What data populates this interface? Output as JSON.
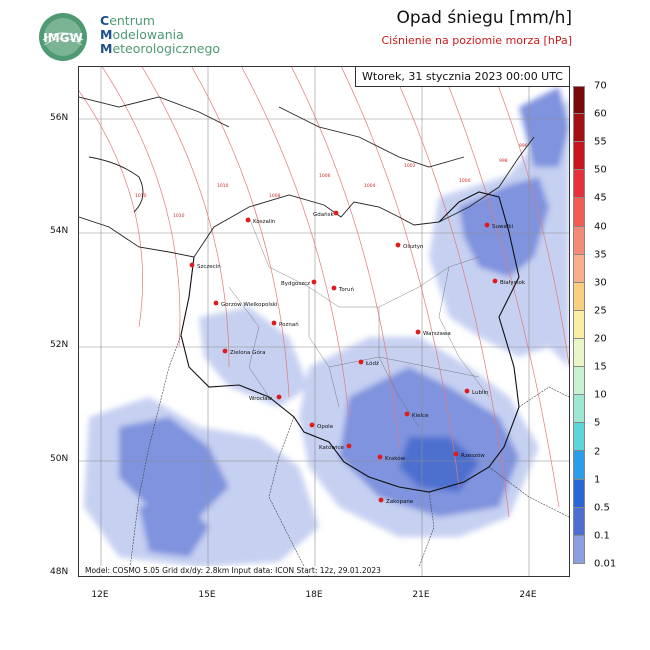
{
  "logo": {
    "badge_text": "IMGW",
    "line1_initial": "C",
    "line1_rest": "entrum",
    "line2_initial": "M",
    "line2_rest": "odelowania",
    "line3_initial": "M",
    "line3_rest": "eteorologicznego"
  },
  "title": "Opad śniegu [mm/h]",
  "subtitle": "Ciśnienie na poziomie morza [hPa]",
  "date": "Wtorek, 31 stycznia 2023 00:00 UTC",
  "footer": "Model: COSMO 5.05  Grid dx/dy: 2.8km  Input data: ICON  Start: 12z, 29.01.2023",
  "lat_ticks": [
    "56N",
    "54N",
    "52N",
    "50N",
    "48N"
  ],
  "lon_ticks": [
    "12E",
    "15E",
    "18E",
    "21E",
    "24E"
  ],
  "colorbar": {
    "labels": [
      "70",
      "60",
      "55",
      "50",
      "45",
      "40",
      "35",
      "30",
      "25",
      "20",
      "15",
      "10",
      "5",
      "2",
      "1",
      "0.5",
      "0.1",
      "0.01"
    ],
    "colors": [
      "#7a0a0a",
      "#a40f0f",
      "#c8141c",
      "#e8303a",
      "#f25a52",
      "#f58a79",
      "#f7b08a",
      "#f8d07f",
      "#fbeea0",
      "#e9f7c8",
      "#c7f1cf",
      "#9de7d3",
      "#5cd6d8",
      "#2a9ee8",
      "#2b66d6",
      "#4d6fcf",
      "#8e9fe0",
      "#d5ddf6"
    ]
  },
  "cities": [
    {
      "name": "Gdańsk"
    },
    {
      "name": "Koszalin"
    },
    {
      "name": "Suwałki"
    },
    {
      "name": "Olsztyn"
    },
    {
      "name": "Szczecin"
    },
    {
      "name": "Białystok"
    },
    {
      "name": "Bydgoszcz"
    },
    {
      "name": "Toruń"
    },
    {
      "name": "Gorzów Wielkopolski"
    },
    {
      "name": "Poznań"
    },
    {
      "name": "Warszawa"
    },
    {
      "name": "Zielona Góra"
    },
    {
      "name": "Łódź"
    },
    {
      "name": "Lublin"
    },
    {
      "name": "Wrocław"
    },
    {
      "name": "Kielce"
    },
    {
      "name": "Opole"
    },
    {
      "name": "Katowice"
    },
    {
      "name": "Rzeszów"
    },
    {
      "name": "Kraków"
    },
    {
      "name": "Zakopane"
    }
  ],
  "isobars": [
    "1010",
    "1010",
    "1010",
    "1008",
    "1006",
    "1004",
    "1002",
    "1000",
    "998",
    "996"
  ]
}
